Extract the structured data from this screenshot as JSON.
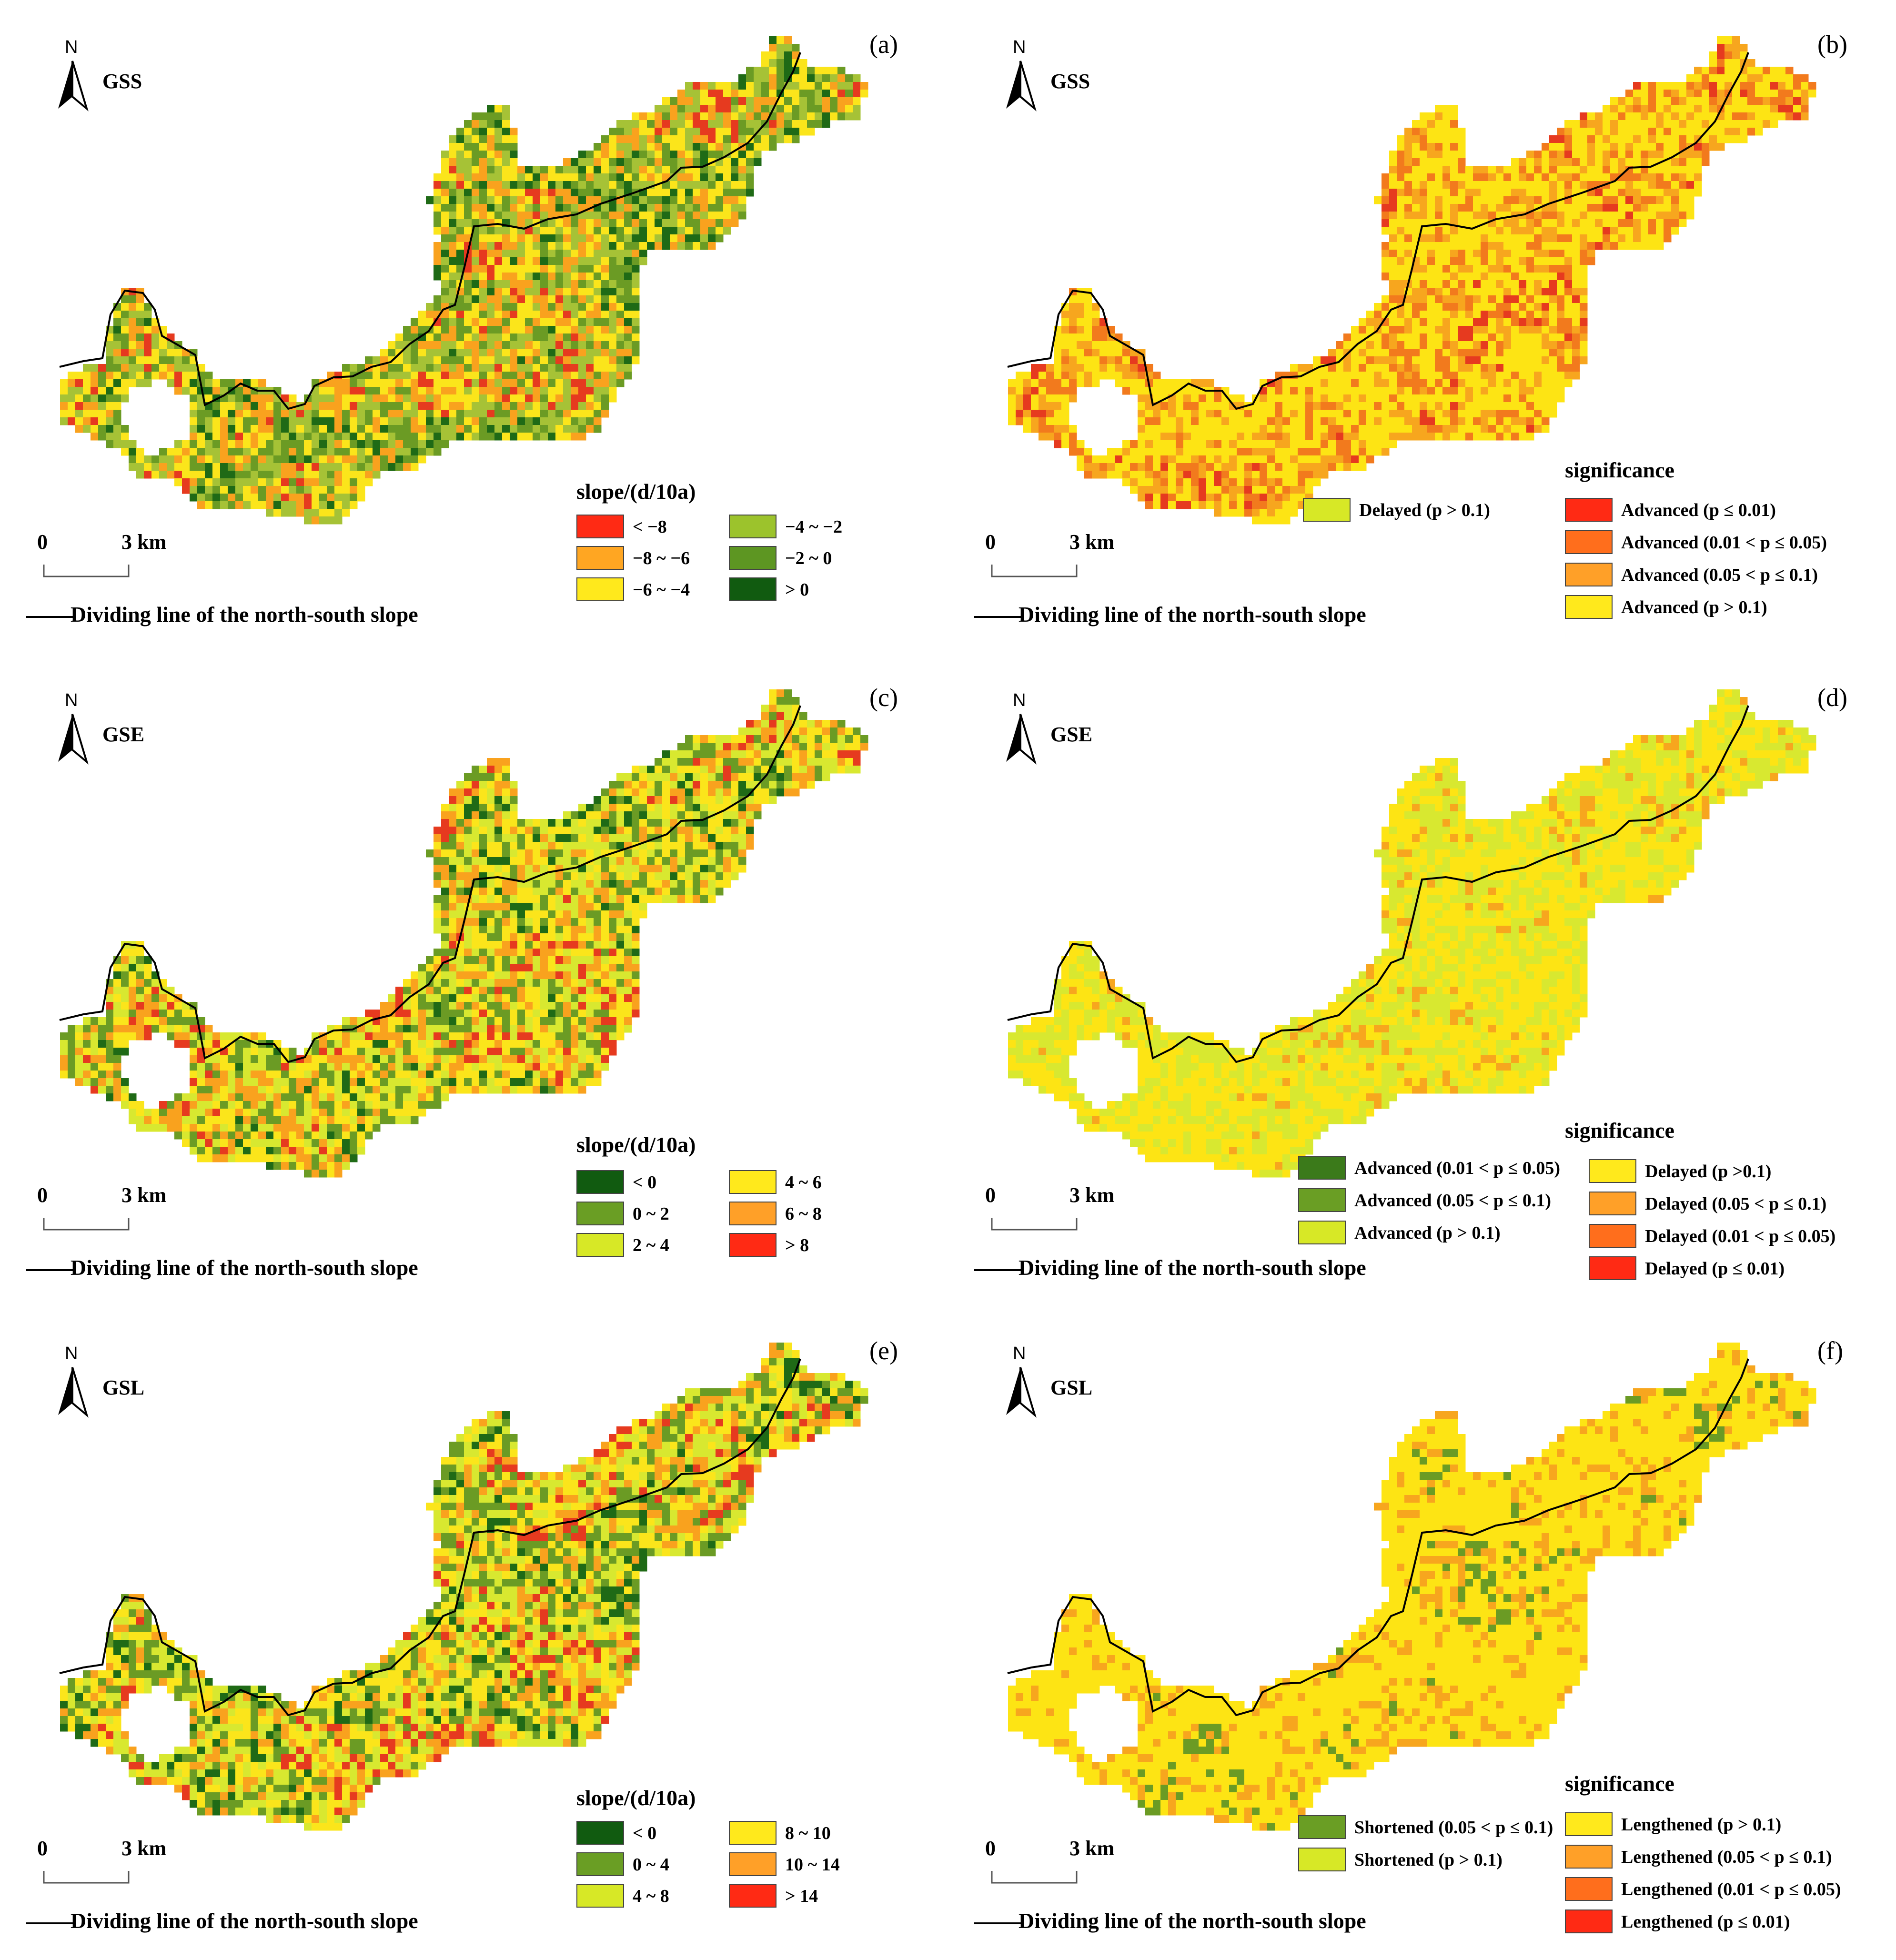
{
  "figure": {
    "divider_text": "Dividing line of the north-south slope",
    "north_label": "N",
    "scale_zero": "0",
    "scale_distance": "3 km"
  },
  "panels": [
    {
      "letter": "(a)",
      "variable": "GSS",
      "legend_title": "slope/(d/10a)",
      "palette": [
        "#e63a1f",
        "#f9a21e",
        "#fbe51b",
        "#a6c236",
        "#6b9b24",
        "#1f6a16"
      ],
      "legend": [
        {
          "label": "< −8",
          "color": "#ff2a14"
        },
        {
          "label": "−8 ~ −6",
          "color": "#ffa622"
        },
        {
          "label": "−6 ~ −4",
          "color": "#ffe91c"
        },
        {
          "label": "−4 ~ −2",
          "color": "#9cc32c"
        },
        {
          "label": "−2 ~ 0",
          "color": "#5d9622"
        },
        {
          "label": "> 0",
          "color": "#115b10"
        }
      ]
    },
    {
      "letter": "(b)",
      "variable": "GSS",
      "legend_title": "significance",
      "palette": [
        "#fde414",
        "#fde414",
        "#fde414",
        "#f7a61e",
        "#f27a1d",
        "#e63a1f"
      ],
      "legend": [
        {
          "label": "Delayed (p > 0.1)",
          "color": "#d7e826"
        },
        {
          "label": "Advanced (p ≤ 0.01)",
          "color": "#ff2a14"
        },
        {
          "label": "Advanced (0.01 < p ≤ 0.05)",
          "color": "#ff6e1c"
        },
        {
          "label": "Advanced (0.05 < p ≤ 0.1)",
          "color": "#ffa028"
        },
        {
          "label": "Advanced (p > 0.1)",
          "color": "#ffe91c"
        }
      ]
    },
    {
      "letter": "(c)",
      "variable": "GSE",
      "legend_title": "slope/(d/10a)",
      "palette": [
        "#1f6a16",
        "#6b9b24",
        "#d8e830",
        "#fbe51b",
        "#f9a21e",
        "#e63a1f"
      ],
      "legend": [
        {
          "label": "< 0",
          "color": "#115b10"
        },
        {
          "label": "0 ~ 2",
          "color": "#6a9e24"
        },
        {
          "label": "2 ~ 4",
          "color": "#d7e826"
        },
        {
          "label": "4 ~ 6",
          "color": "#ffe91c"
        },
        {
          "label": "6 ~ 8",
          "color": "#ffa028"
        },
        {
          "label": "> 8",
          "color": "#ff2a14"
        }
      ]
    },
    {
      "letter": "(d)",
      "variable": "GSE",
      "legend_title": "significance",
      "palette": [
        "#fde414",
        "#fde414",
        "#fde414",
        "#d8e830",
        "#d8e830",
        "#f7a61e"
      ],
      "legend": [
        {
          "label": "Advanced (0.01 < p ≤ 0.05)",
          "color": "#3b7a1a"
        },
        {
          "label": "Advanced (0.05 < p ≤ 0.1)",
          "color": "#6a9e24"
        },
        {
          "label": "Advanced (p > 0.1)",
          "color": "#d7e826"
        },
        {
          "label": "Delayed (p >0.1)",
          "color": "#ffe91c"
        },
        {
          "label": "Delayed (0.05 < p ≤ 0.1)",
          "color": "#ffa028"
        },
        {
          "label": "Delayed (0.01 < p ≤ 0.05)",
          "color": "#ff6e1c"
        },
        {
          "label": "Delayed (p ≤ 0.01)",
          "color": "#ff2a14"
        }
      ]
    },
    {
      "letter": "(e)",
      "variable": "GSL",
      "legend_title": "slope/(d/10a)",
      "palette": [
        "#1f6a16",
        "#6b9b24",
        "#d8e830",
        "#fbe51b",
        "#f9a21e",
        "#e63a1f"
      ],
      "legend": [
        {
          "label": "< 0",
          "color": "#115b10"
        },
        {
          "label": "0 ~ 4",
          "color": "#6a9e24"
        },
        {
          "label": "4 ~ 8",
          "color": "#d7e826"
        },
        {
          "label": "8 ~ 10",
          "color": "#ffe91c"
        },
        {
          "label": "10 ~ 14",
          "color": "#ffa028"
        },
        {
          "label": "> 14",
          "color": "#ff2a14"
        }
      ]
    },
    {
      "letter": "(f)",
      "variable": "GSL",
      "legend_title": "significance",
      "palette": [
        "#fde414",
        "#fde414",
        "#fde414",
        "#fde414",
        "#f7a61e",
        "#6b9b24"
      ],
      "legend": [
        {
          "label": "Shortened (0.05 < p ≤ 0.1)",
          "color": "#6a9e24"
        },
        {
          "label": "Shortened (p > 0.1)",
          "color": "#d7e826"
        },
        {
          "label": "Lengthened (p > 0.1)",
          "color": "#ffe91c"
        },
        {
          "label": "Lengthened (0.05 < p ≤ 0.1)",
          "color": "#ffa028"
        },
        {
          "label": "Lengthened (0.01 < p ≤ 0.05)",
          "color": "#ff6e1c"
        },
        {
          "label": "Lengthened (p ≤ 0.01)",
          "color": "#ff2a14"
        }
      ]
    }
  ]
}
